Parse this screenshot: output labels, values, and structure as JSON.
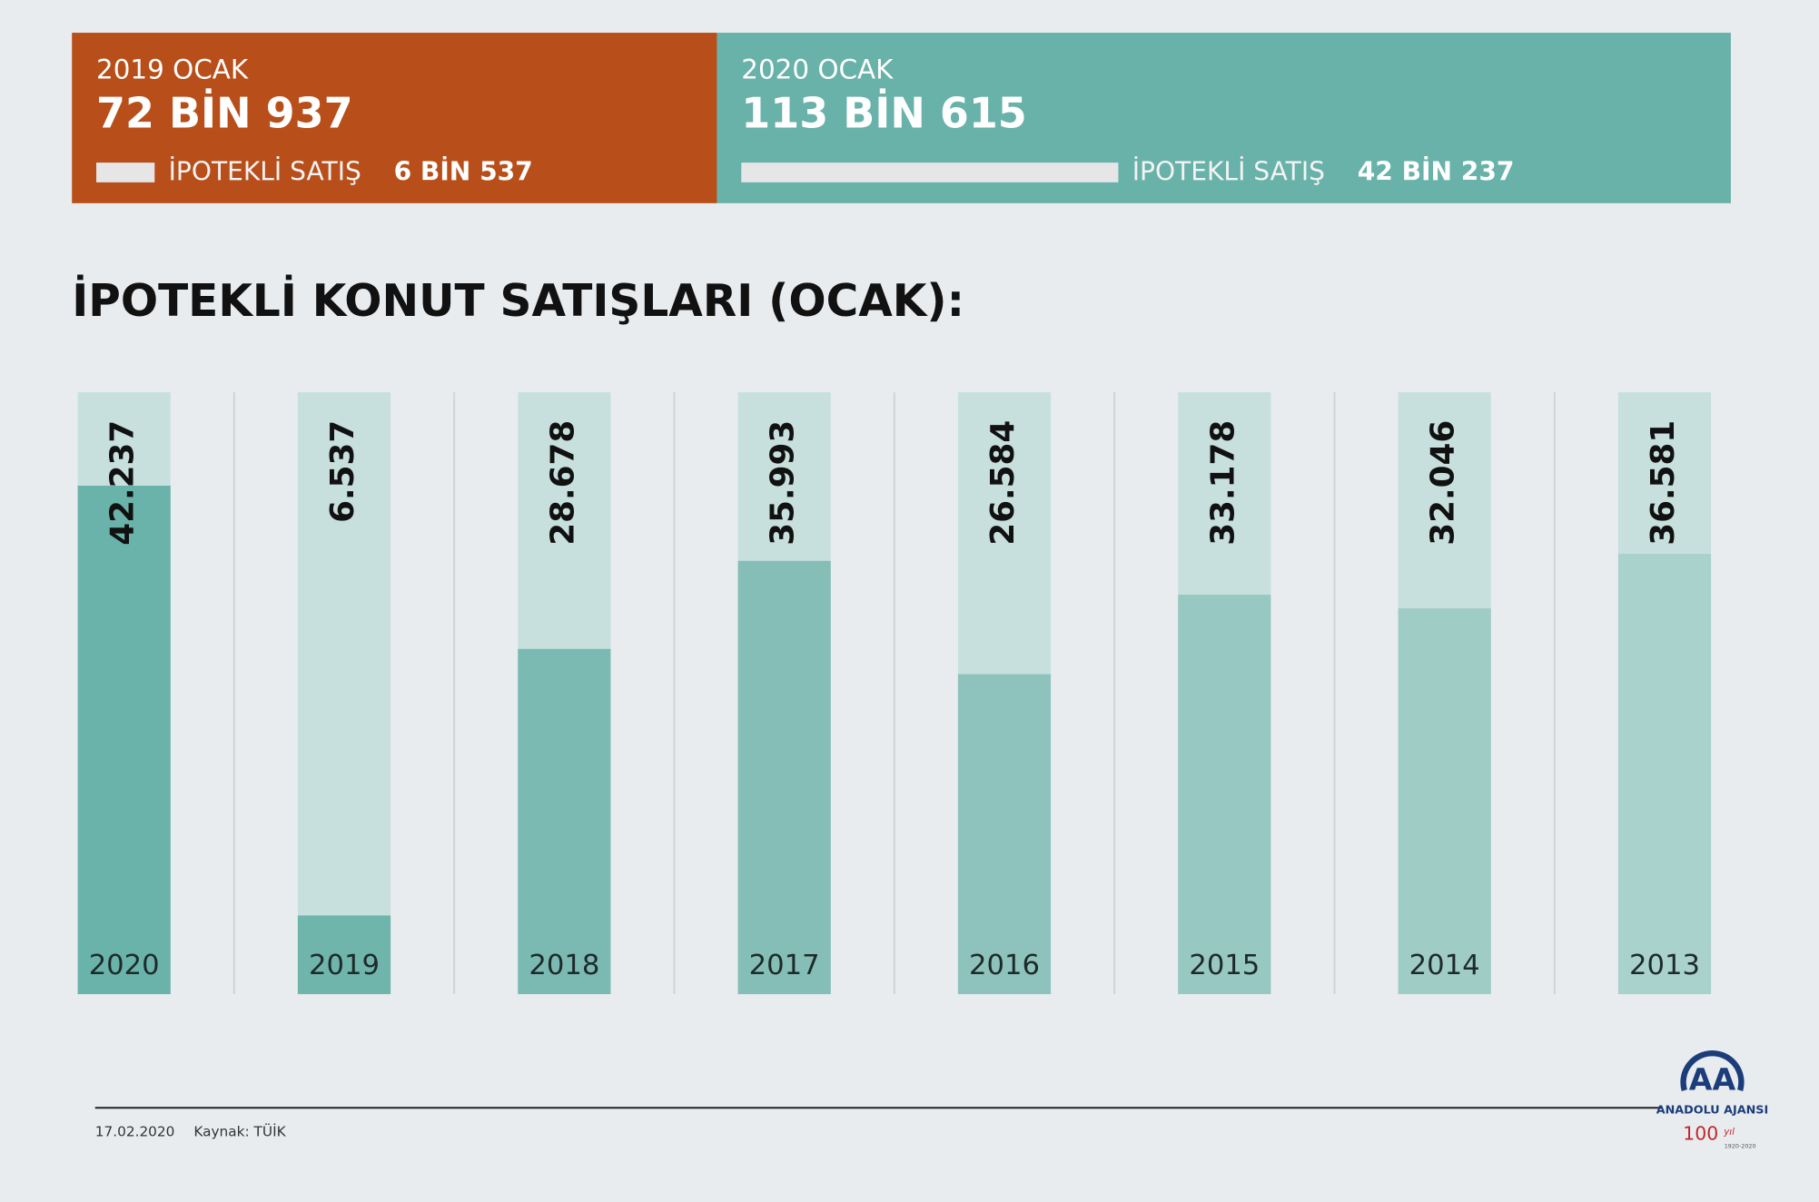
{
  "header": {
    "panels": [
      {
        "period": "2019 OCAK",
        "total": "72 BİN 937",
        "sub_title": "İPOTEKLİ SATIŞ",
        "sub_value": 6537,
        "sub_value_label": "6 BİN 537",
        "color": "#b84f1a"
      },
      {
        "period": "2020 OCAK",
        "total": "113 BİN 615",
        "sub_title": "İPOTEKLİ SATIŞ",
        "sub_value": 42237,
        "sub_value_label": "42 BİN 237",
        "color": "#68b2a9"
      }
    ]
  },
  "chart_data": {
    "type": "bar",
    "title": "İPOTEKLİ KONUT SATIŞLARI (OCAK):",
    "categories": [
      "2020",
      "2019",
      "2018",
      "2017",
      "2016",
      "2015",
      "2014",
      "2013"
    ],
    "values": [
      42237,
      6537,
      28678,
      35993,
      26584,
      33178,
      32046,
      36581
    ],
    "value_labels": [
      "42.237",
      "6.537",
      "28.678",
      "35.993",
      "26.584",
      "33.178",
      "32.046",
      "36.581"
    ],
    "colors": [
      "#6ab3aa",
      "#6fb5ac",
      "#7bbab2",
      "#84beb7",
      "#8dc3bc",
      "#97c8c2",
      "#a0ccc6",
      "#a9d2cc"
    ],
    "ylim": [
      0,
      50000
    ]
  },
  "footer": {
    "date": "17.02.2020",
    "source": "Kaynak: TÜİK"
  },
  "logo": {
    "name": "ANADOLU AJANSI",
    "anniversary": "100",
    "unit": "yıl",
    "years": "1920-2020"
  }
}
